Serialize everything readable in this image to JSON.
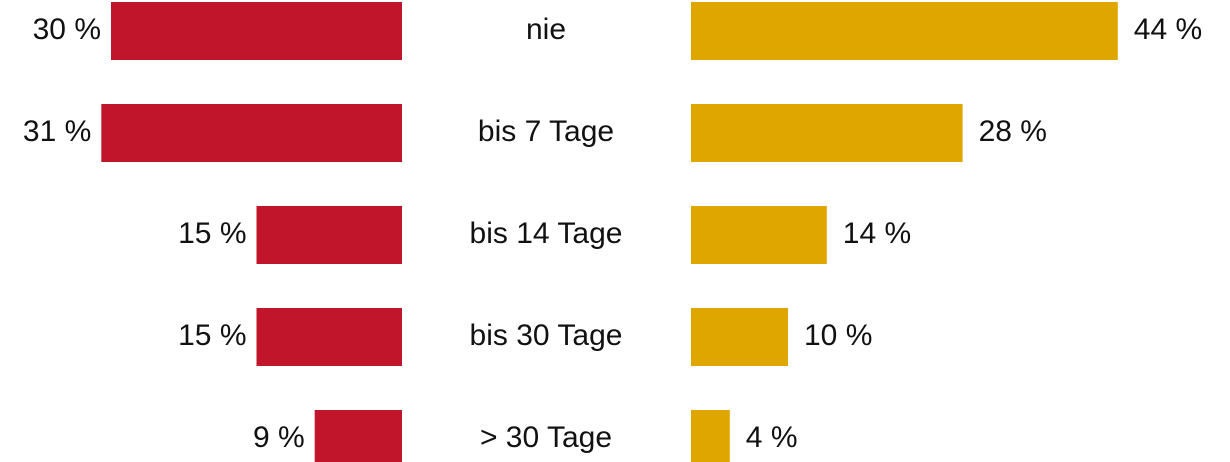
{
  "chart_data": {
    "type": "bar",
    "categories": [
      "nie",
      "bis 7 Tage",
      "bis 14 Tage",
      "bis 30 Tage",
      "> 30 Tage"
    ],
    "series": [
      {
        "color": "#c0152a",
        "values": [
          30,
          31,
          15,
          15,
          9
        ],
        "value_labels": [
          "30 %",
          "31 %",
          "15 %",
          "15 %",
          "9 %"
        ]
      },
      {
        "color": "#e0a600",
        "values": [
          44,
          28,
          14,
          10,
          4
        ],
        "value_labels": [
          "44 %",
          "28 %",
          "14 %",
          "10 %",
          "4 %"
        ]
      }
    ]
  }
}
